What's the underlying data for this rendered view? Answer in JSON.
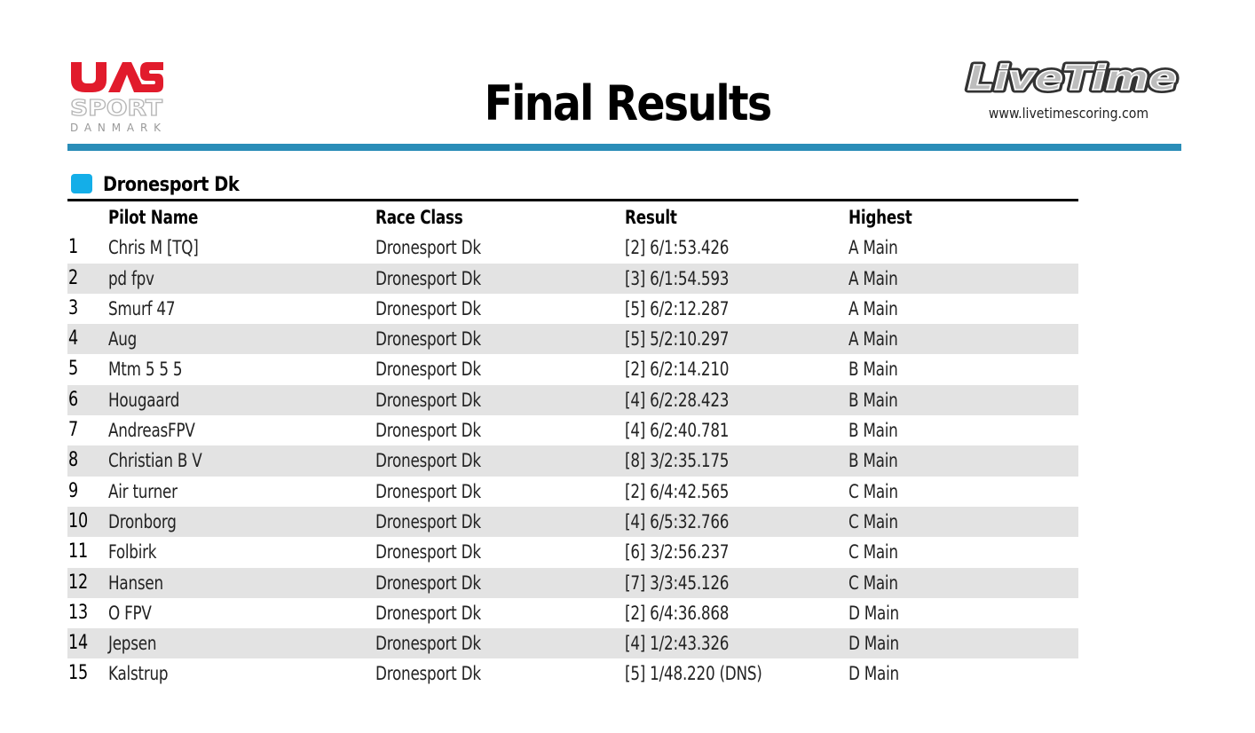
{
  "header": {
    "logo_left": {
      "name": "UAS Sport Danmark",
      "text_line1": "UAS",
      "text_line2": "SPORT",
      "text_line3": "DANMARK"
    },
    "title": "Final Results",
    "logo_right": {
      "name": "LiveTime",
      "text": "LiveTime",
      "url": "www.livetimescoring.com"
    }
  },
  "colors": {
    "accent_rule": "#2a8db8",
    "section_marker": "#14aee8",
    "row_alt": "#e3e3e3",
    "uas_red": "#e11b2c",
    "uas_grey": "#b7b7b7"
  },
  "section": {
    "title": "Dronesport Dk",
    "columns": [
      "",
      "Pilot Name",
      "Race Class",
      "Result",
      "Highest"
    ],
    "rows": [
      {
        "pos": "1",
        "name": "Chris M [TQ]",
        "class": "Dronesport Dk",
        "result": "[2] 6/1:53.426",
        "highest": "A Main"
      },
      {
        "pos": "2",
        "name": "pd fpv",
        "class": "Dronesport Dk",
        "result": "[3] 6/1:54.593",
        "highest": "A Main"
      },
      {
        "pos": "3",
        "name": "Smurf 47",
        "class": "Dronesport Dk",
        "result": "[5] 6/2:12.287",
        "highest": "A Main"
      },
      {
        "pos": "4",
        "name": "Aug",
        "class": "Dronesport Dk",
        "result": "[5] 5/2:10.297",
        "highest": "A Main"
      },
      {
        "pos": "5",
        "name": "Mtm 5 5 5",
        "class": "Dronesport Dk",
        "result": "[2] 6/2:14.210",
        "highest": "B Main"
      },
      {
        "pos": "6",
        "name": "Hougaard",
        "class": "Dronesport Dk",
        "result": "[4] 6/2:28.423",
        "highest": "B Main"
      },
      {
        "pos": "7",
        "name": "AndreasFPV",
        "class": "Dronesport Dk",
        "result": "[4] 6/2:40.781",
        "highest": "B Main"
      },
      {
        "pos": "8",
        "name": "Christian B V",
        "class": "Dronesport Dk",
        "result": "[8] 3/2:35.175",
        "highest": "B Main"
      },
      {
        "pos": "9",
        "name": "Air turner",
        "class": "Dronesport Dk",
        "result": "[2] 6/4:42.565",
        "highest": "C Main"
      },
      {
        "pos": "10",
        "name": "Dronborg",
        "class": "Dronesport Dk",
        "result": "[4] 6/5:32.766",
        "highest": "C Main"
      },
      {
        "pos": "11",
        "name": "Folbirk",
        "class": "Dronesport Dk",
        "result": "[6] 3/2:56.237",
        "highest": "C Main"
      },
      {
        "pos": "12",
        "name": "Hansen",
        "class": "Dronesport Dk",
        "result": "[7] 3/3:45.126",
        "highest": "C Main"
      },
      {
        "pos": "13",
        "name": "O FPV",
        "class": "Dronesport Dk",
        "result": "[2] 6/4:36.868",
        "highest": "D Main"
      },
      {
        "pos": "14",
        "name": "Jepsen",
        "class": "Dronesport Dk",
        "result": "[4] 1/2:43.326",
        "highest": "D Main"
      },
      {
        "pos": "15",
        "name": "Kalstrup",
        "class": "Dronesport Dk",
        "result": "[5] 1/48.220 (DNS)",
        "highest": "D Main"
      }
    ]
  }
}
